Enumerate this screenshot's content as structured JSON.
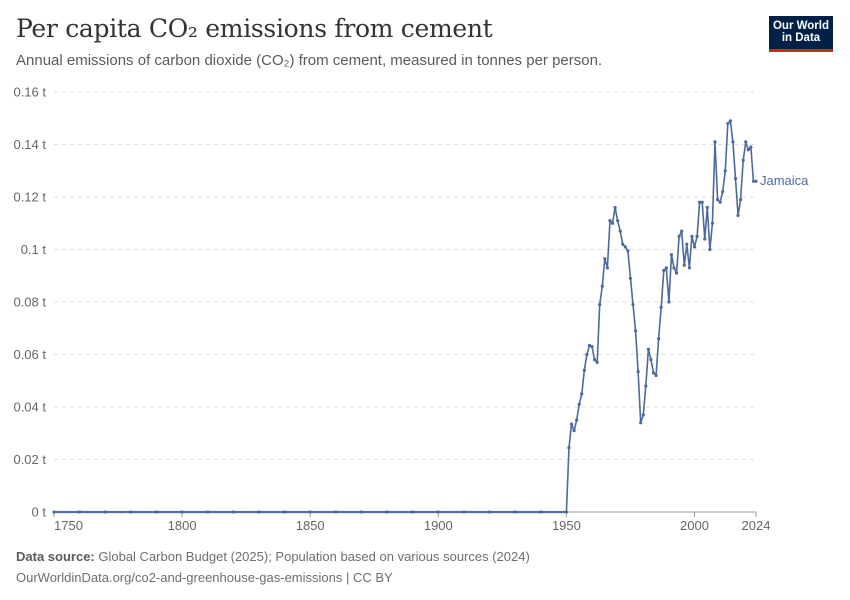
{
  "header": {
    "title": "Per capita CO₂ emissions from cement",
    "subtitle": "Annual emissions of carbon dioxide (CO₂) from cement, measured in tonnes per person.",
    "logo_line1": "Our World",
    "logo_line2": "in Data"
  },
  "footer": {
    "source_label": "Data source:",
    "source_text": " Global Carbon Budget (2025); Population based on various sources (2024)",
    "url_line": "OurWorldinData.org/co2-and-greenhouse-gas-emissions | CC BY"
  },
  "colors": {
    "series": "#4c6a9c",
    "grid": "#dddddd",
    "axis_text": "#666666"
  },
  "chart_data": {
    "type": "line",
    "ylim": [
      0,
      0.16
    ],
    "xlim": [
      1750,
      2024
    ],
    "y_ticks": [
      0,
      0.02,
      0.04,
      0.06,
      0.08,
      0.1,
      0.12,
      0.14,
      0.16
    ],
    "y_tick_labels": [
      "0 t",
      "0.02 t",
      "0.04 t",
      "0.06 t",
      "0.08 t",
      "0.1 t",
      "0.12 t",
      "0.14 t",
      "0.16 t"
    ],
    "x_ticks": [
      1750,
      1800,
      1850,
      1900,
      1950,
      2000,
      2024
    ],
    "x_tick_labels": [
      "1750",
      "1800",
      "1850",
      "1900",
      "1950",
      "2000",
      "2024"
    ],
    "grid": "horizontal dashed",
    "series": [
      {
        "name": "Jamaica",
        "x": [
          1750,
          1760,
          1770,
          1780,
          1790,
          1800,
          1810,
          1820,
          1830,
          1840,
          1850,
          1860,
          1870,
          1880,
          1890,
          1900,
          1910,
          1920,
          1930,
          1940,
          1950,
          1951,
          1952,
          1953,
          1954,
          1955,
          1956,
          1957,
          1958,
          1959,
          1960,
          1961,
          1962,
          1963,
          1964,
          1965,
          1966,
          1967,
          1968,
          1969,
          1970,
          1971,
          1972,
          1973,
          1974,
          1975,
          1976,
          1977,
          1978,
          1979,
          1980,
          1981,
          1982,
          1983,
          1984,
          1985,
          1986,
          1987,
          1988,
          1989,
          1990,
          1991,
          1992,
          1993,
          1994,
          1995,
          1996,
          1997,
          1998,
          1999,
          2000,
          2001,
          2002,
          2003,
          2004,
          2005,
          2006,
          2007,
          2008,
          2009,
          2010,
          2011,
          2012,
          2013,
          2014,
          2015,
          2016,
          2017,
          2018,
          2019,
          2020,
          2021,
          2022,
          2023,
          2024
        ],
        "y": [
          0,
          0,
          0,
          0,
          0,
          0,
          0,
          0,
          0,
          0,
          0,
          0,
          0,
          0,
          0,
          0,
          0,
          0,
          0,
          0,
          0,
          0.0245,
          0.0335,
          0.031,
          0.035,
          0.041,
          0.045,
          0.054,
          0.06,
          0.0635,
          0.063,
          0.058,
          0.057,
          0.079,
          0.086,
          0.0965,
          0.093,
          0.111,
          0.11,
          0.116,
          0.111,
          0.107,
          0.102,
          0.101,
          0.0995,
          0.089,
          0.079,
          0.069,
          0.0535,
          0.034,
          0.037,
          0.048,
          0.062,
          0.058,
          0.053,
          0.052,
          0.066,
          0.078,
          0.092,
          0.093,
          0.08,
          0.098,
          0.093,
          0.091,
          0.105,
          0.107,
          0.094,
          0.102,
          0.093,
          0.105,
          0.101,
          0.105,
          0.118,
          0.118,
          0.104,
          0.116,
          0.1,
          0.11,
          0.141,
          0.119,
          0.118,
          0.122,
          0.13,
          0.148,
          0.149,
          0.141,
          0.127,
          0.113,
          0.119,
          0.134,
          0.141,
          0.138,
          0.139,
          0.126,
          0.126
        ]
      }
    ]
  }
}
